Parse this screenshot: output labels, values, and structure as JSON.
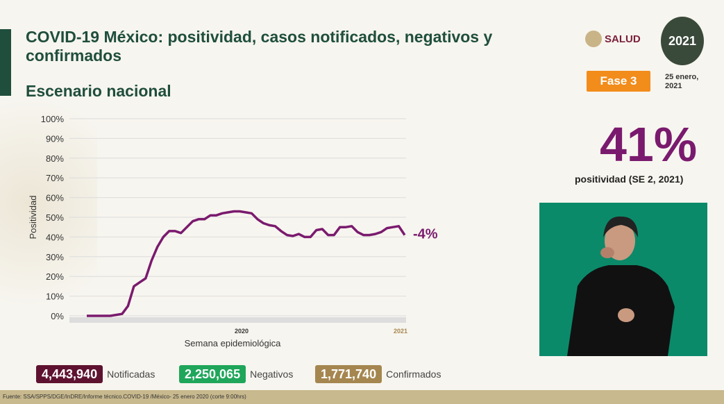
{
  "title": "COVID-19 México: positividad, casos notificados, negativos y confirmados",
  "subtitle": "Escenario nacional",
  "logos": {
    "salud": "SALUD",
    "year": "2021"
  },
  "phase": "Fase 3",
  "date": "25 enero, 2021",
  "headline": {
    "value": "41%",
    "label": "positividad (SE 2, 2021)"
  },
  "stats": [
    {
      "value": "4,443,940",
      "label": "Notificadas",
      "color": "#5e1230"
    },
    {
      "value": "2,250,065",
      "label": "Negativos",
      "color": "#1fa65a"
    },
    {
      "value": "1,771,740",
      "label": "Confirmados",
      "color": "#a5864f"
    }
  ],
  "footer": "Fuente: SSA/SPPS/DGE/InDRE/Informe técnico.COVID-19 /México- 25 enero 2020 (corte 9:00hrs)",
  "chart_data": {
    "type": "line",
    "xlabel": "Semana epidemiológica",
    "ylabel": "Positividad",
    "ylim": [
      0,
      100
    ],
    "yticks": [
      "0%",
      "10%",
      "20%",
      "30%",
      "40%",
      "50%",
      "60%",
      "70%",
      "80%",
      "90%",
      "100%"
    ],
    "year_labels": [
      "2020",
      "2021"
    ],
    "annotation": "-4%",
    "color": "#7a1a6e",
    "grid": true,
    "series": [
      {
        "values": [
          0,
          0,
          0,
          0,
          0,
          0.5,
          1,
          5,
          15,
          17,
          19,
          28,
          35,
          40,
          43,
          43,
          42,
          45,
          48,
          49,
          49,
          51,
          51,
          52,
          52.5,
          53,
          53,
          52.5,
          52,
          49,
          47,
          46,
          45.5,
          43,
          41,
          40.5,
          41.5,
          40,
          40,
          43.5,
          44,
          41,
          41,
          45,
          45,
          45.5,
          42.5,
          41,
          41,
          41.5,
          42.5,
          44.5,
          45,
          45.5,
          41
        ]
      }
    ]
  }
}
